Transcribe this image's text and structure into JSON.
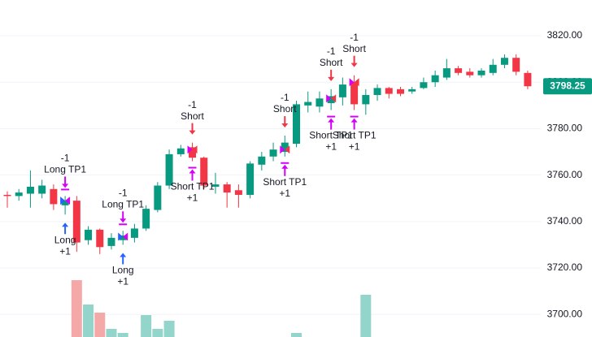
{
  "chart_data": {
    "type": "candlestick",
    "up_color": "#089981",
    "down_color": "#f23645",
    "volume_up_color": "#93d5cb",
    "volume_down_color": "#f5a8a8",
    "grid": true,
    "ylim": [
      3690.3,
      3835.4
    ],
    "yticks": [
      {
        "value": 3700,
        "label": "3700.00"
      },
      {
        "value": 3720,
        "label": "3720.00"
      },
      {
        "value": 3740,
        "label": "3740.00"
      },
      {
        "value": 3760,
        "label": "3760.00"
      },
      {
        "value": 3780,
        "label": "3780.00"
      },
      {
        "value": 3800,
        "label": "3800.00"
      },
      {
        "value": 3820,
        "label": "3820.00"
      }
    ],
    "last_price": 3798.25,
    "open": [
      3751.5,
      3751,
      3752,
      3752,
      3754,
      3747,
      3749,
      3732,
      3736.5,
      3729.5,
      3732,
      3733,
      3737,
      3745,
      3755.5,
      3769,
      3772,
      3767.5,
      3755,
      3756,
      3753.5,
      3751.5,
      3764.5,
      3768,
      3770,
      3773.5,
      3790,
      3789.5,
      3791,
      3793.5,
      3800,
      3790.5,
      3794.5,
      3797.5,
      3797,
      3796,
      3797.5,
      3800,
      3802,
      3806,
      3804.5,
      3803,
      3804,
      3807.5,
      3810.5,
      3804
    ],
    "high": [
      3753,
      3754,
      3762,
      3758,
      3756,
      3751,
      3751,
      3738,
      3737,
      3735,
      3736,
      3739,
      3747,
      3757,
      3771,
      3773,
      3774,
      3768,
      3761,
      3757,
      3756,
      3766,
      3770,
      3774,
      3777,
      3792,
      3796,
      3796,
      3797,
      3802,
      3803,
      3797,
      3799,
      3798,
      3798,
      3798,
      3802,
      3805,
      3810,
      3807,
      3806,
      3806,
      3810,
      3812,
      3812,
      3805
    ],
    "low": [
      3746,
      3749,
      3746,
      3750,
      3745,
      3743,
      3727,
      3730,
      3726,
      3728,
      3730,
      3731,
      3736,
      3744,
      3754,
      3768,
      3766,
      3754,
      3752,
      3746,
      3746,
      3750,
      3762,
      3766,
      3768,
      3772,
      3787,
      3787,
      3788,
      3790,
      3788,
      3786,
      3792,
      3793,
      3794,
      3795,
      3797,
      3798,
      3801,
      3803,
      3802,
      3802,
      3803,
      3806,
      3803,
      3797
    ],
    "close": [
      3751,
      3752.5,
      3755,
      3755.5,
      3747.5,
      3749,
      3731,
      3736.5,
      3729,
      3733,
      3734,
      3737,
      3745.5,
      3755.5,
      3769,
      3771.5,
      3767.5,
      3755.5,
      3756,
      3752.5,
      3751.5,
      3765,
      3768,
      3771,
      3774,
      3790.5,
      3791.5,
      3793,
      3794,
      3799,
      3790.5,
      3794.5,
      3797.5,
      3795,
      3795,
      3797,
      3800,
      3803,
      3806,
      3804,
      3803,
      3805,
      3807.5,
      3810.5,
      3804.5,
      3798.25
    ],
    "volume": [
      5,
      5,
      5,
      5,
      5,
      5,
      80,
      50,
      40,
      20,
      15,
      5,
      37,
      20,
      30,
      5,
      5,
      5,
      5,
      5,
      5,
      5,
      5,
      5,
      5,
      15,
      5,
      5,
      5,
      5,
      5,
      62,
      5,
      5,
      5,
      5,
      5,
      5,
      5,
      5,
      5,
      5,
      5,
      5,
      5,
      5
    ],
    "signals": [
      {
        "index": 5,
        "price": 3749,
        "top": [
          "-1",
          "Long TP1"
        ],
        "top_color": "#d500f9",
        "top_bar": true,
        "bottom": [
          "Long",
          "+1"
        ],
        "bottom_color": "#2962ff",
        "bottom_bar": false
      },
      {
        "index": 10,
        "price": 3733.5,
        "top": [
          "-1",
          "Long TP1"
        ],
        "top_color": "#d500f9",
        "top_bar": true,
        "bottom": [
          "Long",
          "+1"
        ],
        "bottom_color": "#2962ff",
        "bottom_bar": false
      },
      {
        "index": 16,
        "price": 3771,
        "top": [
          "-1",
          "Short"
        ],
        "top_color": "#f23645",
        "top_bar": false,
        "bottom": [
          "Short TP1",
          "+1"
        ],
        "bottom_color": "#d500f9",
        "bottom_bar": true
      },
      {
        "index": 24,
        "price": 3771,
        "top": [
          "-1",
          "Short"
        ],
        "top_color": "#f23645",
        "top_bar": false,
        "bottom": [
          "Short TP1",
          "+1"
        ],
        "bottom_color": "#d500f9",
        "bottom_bar": true
      },
      {
        "index": 28,
        "price": 3793,
        "top": [
          "-1",
          "Short"
        ],
        "top_color": "#f23645",
        "top_bar": false,
        "bottom": [
          "Short TP1",
          "+1"
        ],
        "bottom_color": "#d500f9",
        "bottom_bar": true
      },
      {
        "index": 30,
        "price": 3800,
        "top": [
          "-1",
          "Short"
        ],
        "top_color": "#f23645",
        "top_bar": false,
        "bottom": [
          "Short TP1",
          "+1"
        ],
        "bottom_color": "#d500f9",
        "bottom_bar": true
      }
    ]
  }
}
